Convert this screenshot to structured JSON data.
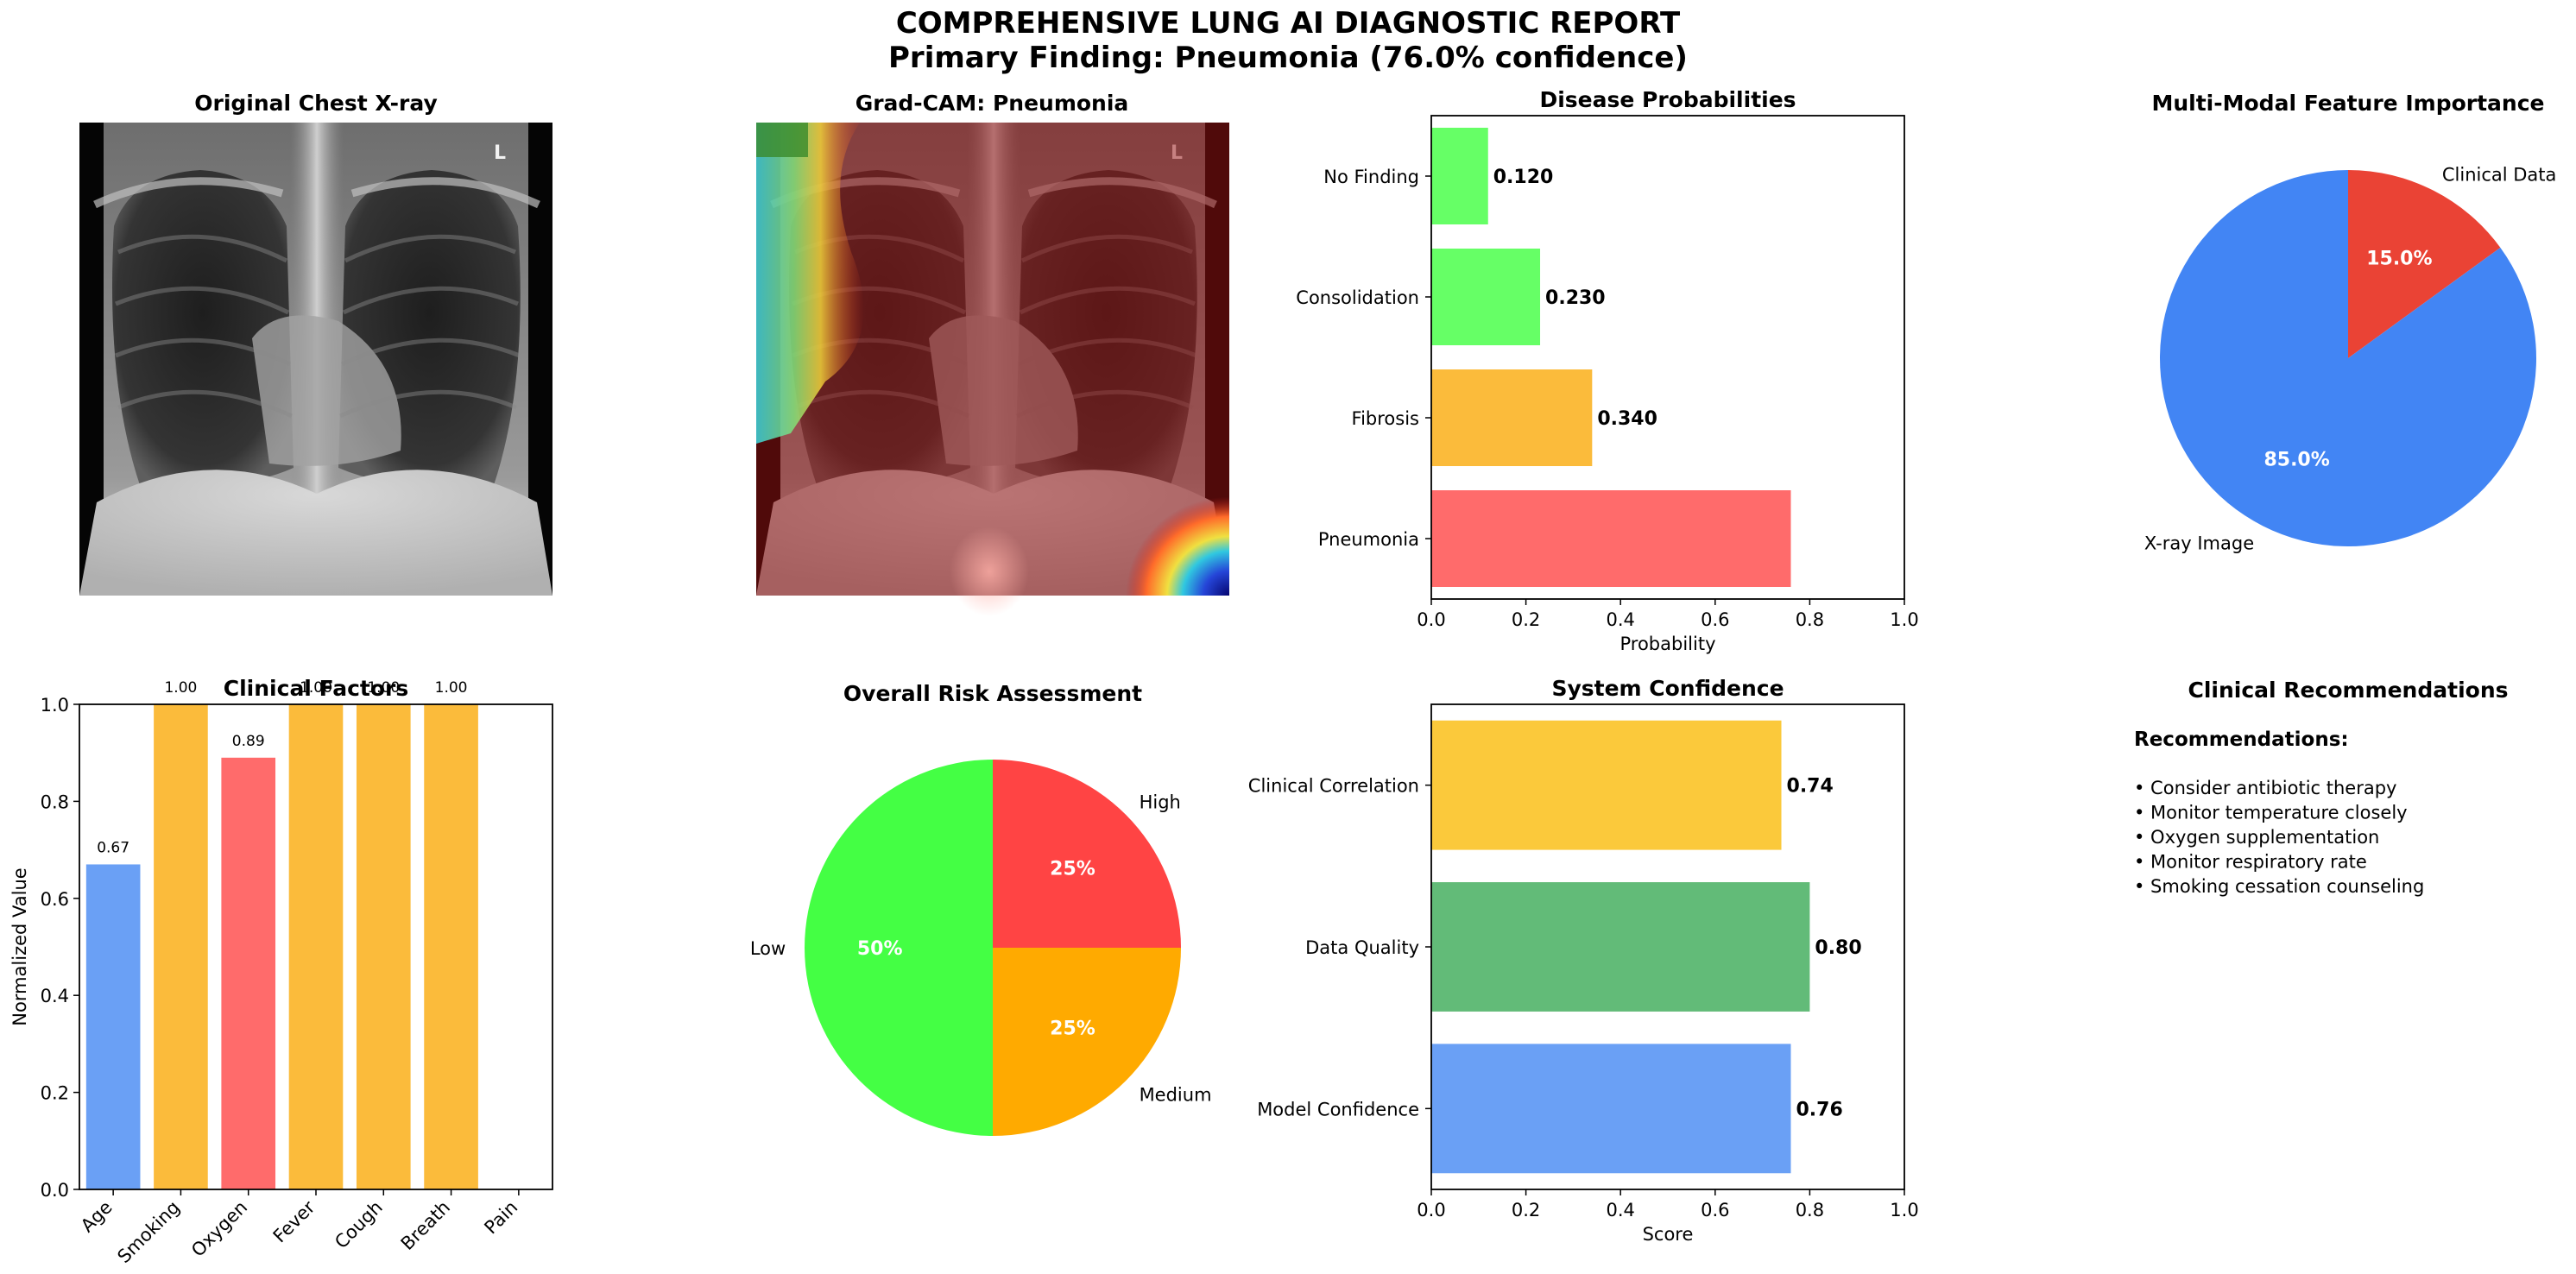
{
  "report": {
    "title": "COMPREHENSIVE LUNG AI DIAGNOSTIC REPORT",
    "subtitle": "Primary Finding: Pneumonia (76.0% confidence)"
  },
  "panels": {
    "xray": {
      "title": "Original Chest X-ray"
    },
    "gradcam": {
      "title": "Grad-CAM: Pneumonia"
    },
    "recommendations": {
      "title": "Clinical Recommendations",
      "heading": "Recommendations:",
      "items": [
        "• Consider antibiotic therapy",
        "• Monitor temperature closely",
        "• Oxygen supplementation",
        "• Monitor respiratory rate",
        "• Smoking cessation counseling"
      ]
    }
  },
  "colors": {
    "blue": "#6aa0f5",
    "orange": "#fbbb3b",
    "red": "#ff6b6b",
    "green": "#66ff66",
    "pie_blue": "#4285f4",
    "pie_red": "#ea4335",
    "risk_green": "#44ff44",
    "risk_orange": "#ffaa00",
    "risk_red": "#ff4444",
    "conf_yellow": "#fbc93b",
    "conf_green": "#62bb78"
  },
  "chart_data": [
    {
      "id": "disease",
      "type": "bar",
      "orientation": "horizontal",
      "title": "Disease Probabilities",
      "xlabel": "Probability",
      "categories": [
        "Pneumonia",
        "Fibrosis",
        "Consolidation",
        "No Finding"
      ],
      "values": [
        0.76,
        0.34,
        0.23,
        0.12
      ],
      "labels": [
        "",
        "0.340",
        "0.230",
        "0.120"
      ],
      "colors": [
        "#ff6b6b",
        "#fbbb3b",
        "#66ff66",
        "#66ff66"
      ],
      "xlim": [
        0,
        1.0
      ],
      "ticks": [
        "0.0",
        "0.2",
        "0.4",
        "0.6",
        "0.8",
        "1.0"
      ]
    },
    {
      "id": "modal",
      "type": "pie",
      "title": "Multi-Modal Feature Importance",
      "slices": [
        {
          "label": "Clinical Data",
          "value": 15.0,
          "pct": "15.0%",
          "color": "#ea4335"
        },
        {
          "label": "X-ray Image",
          "value": 85.0,
          "pct": "85.0%",
          "color": "#4285f4"
        }
      ]
    },
    {
      "id": "clinical",
      "type": "bar",
      "title": "Clinical Factors",
      "ylabel": "Normalized Value",
      "categories": [
        "Age",
        "Smoking",
        "Oxygen",
        "Fever",
        "Cough",
        "Breath",
        "Pain"
      ],
      "values": [
        0.67,
        1.0,
        0.89,
        1.0,
        1.0,
        1.0,
        0.0
      ],
      "labels": [
        "0.67",
        "1.00",
        "0.89",
        "1.00",
        "1.00",
        "1.00",
        ""
      ],
      "colors": [
        "#6aa0f5",
        "#fbbb3b",
        "#ff6b6b",
        "#fbbb3b",
        "#fbbb3b",
        "#fbbb3b",
        "#fbbb3b"
      ],
      "ylim": [
        0,
        1.0
      ],
      "ticks": [
        "0.0",
        "0.2",
        "0.4",
        "0.6",
        "0.8",
        "1.0"
      ]
    },
    {
      "id": "risk",
      "type": "pie",
      "title": "Overall Risk Assessment",
      "slices": [
        {
          "label": "High",
          "value": 25,
          "pct": "25%",
          "color": "#ff4444"
        },
        {
          "label": "Medium",
          "value": 25,
          "pct": "25%",
          "color": "#ffaa00"
        },
        {
          "label": "Low",
          "value": 50,
          "pct": "50%",
          "color": "#44ff44"
        }
      ]
    },
    {
      "id": "confidence",
      "type": "bar",
      "orientation": "horizontal",
      "title": "System Confidence",
      "xlabel": "Score",
      "categories": [
        "Model Confidence",
        "Data Quality",
        "Clinical Correlation"
      ],
      "values": [
        0.76,
        0.8,
        0.74
      ],
      "labels": [
        "0.76",
        "0.80",
        "0.74"
      ],
      "colors": [
        "#6aa0f5",
        "#62bb78",
        "#fbc93b"
      ],
      "xlim": [
        0,
        1.0
      ],
      "ticks": [
        "0.0",
        "0.2",
        "0.4",
        "0.6",
        "0.8",
        "1.0"
      ]
    }
  ]
}
